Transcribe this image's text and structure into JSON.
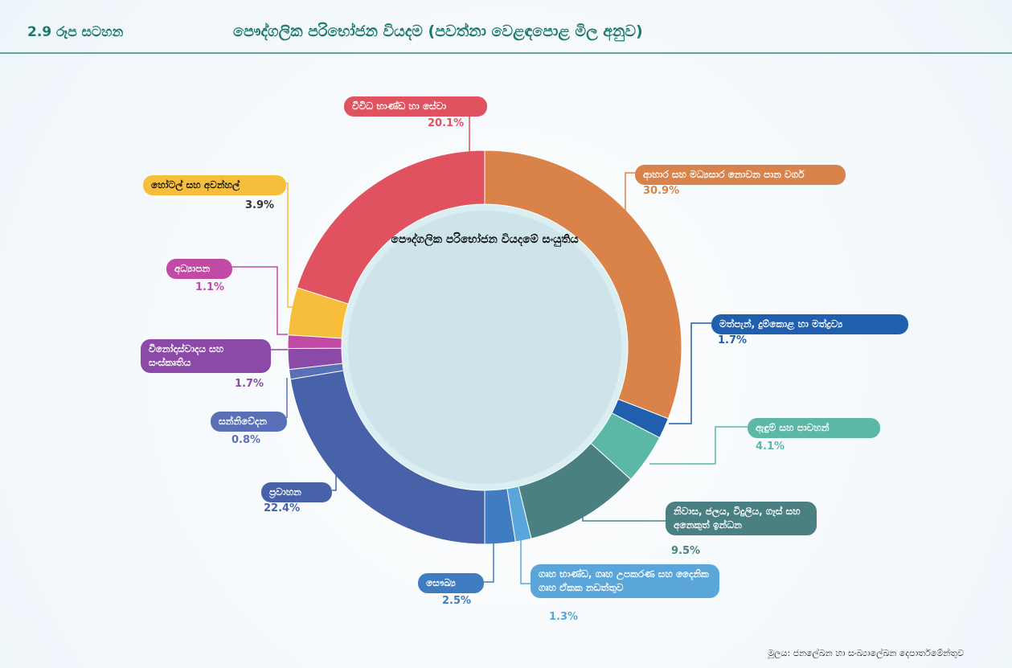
{
  "chart_data": {
    "type": "donut",
    "figure_label": "2.9 රූප සටහන",
    "title": "පෞද්ගලික පරිභෝජන වියදම (පවත්නා වෙළඳපොළ මිල අනුව)",
    "center_label": "පෞද්ගලික පරිභෝජන වියදමේ සංයුතිය",
    "categories": [
      "ආහාර සහ මධ්‍යසාර නොවන පාන වර්ග",
      "මත්පැන්, දුම්කොළ හා මත්ද්‍රව්‍ය",
      "ඇඳුම් සහ පාවහන්",
      "නිවාස, ජලය, විදුලිය, ගෑස් සහ අනෙකුත් ඉන්ධන",
      "ගෘහ භාණ්ඩ, ගෘහ උපකරණ සහ දෛනික ගෘහ ඒකක නඩත්තුව",
      "සෞඛ්‍ය",
      "ප්‍රවාහන",
      "සන්නිවේදන",
      "විනෝදාස්වාදය සහ සංස්කෘතිය",
      "අධ්‍යාපන",
      "හෝටල් සහ අවන්හල්",
      "විවිධ භාණ්ඩ හා සේවා"
    ],
    "values": [
      30.9,
      1.7,
      4.1,
      9.5,
      1.3,
      2.5,
      22.4,
      0.8,
      1.7,
      1.1,
      3.9,
      20.1
    ],
    "value_labels": [
      "30.9%",
      "1.7%",
      "4.1%",
      "9.5%",
      "1.3%",
      "2.5%",
      "22.4%",
      "0.8%",
      "1.7%",
      "1.1%",
      "3.9%",
      "20.1%"
    ],
    "colors": [
      "#d9834b",
      "#1f5fae",
      "#5bb8a6",
      "#4b8082",
      "#5aa5da",
      "#3f7cc0",
      "#4762a9",
      "#5a70b6",
      "#8c4aa8",
      "#c04aa4",
      "#f6be3a",
      "#e0525f"
    ],
    "source": "මූලය: ජනලේඛන හා සංඛ්‍යාලේඛන දෙපාර්තමේන්තුව"
  }
}
